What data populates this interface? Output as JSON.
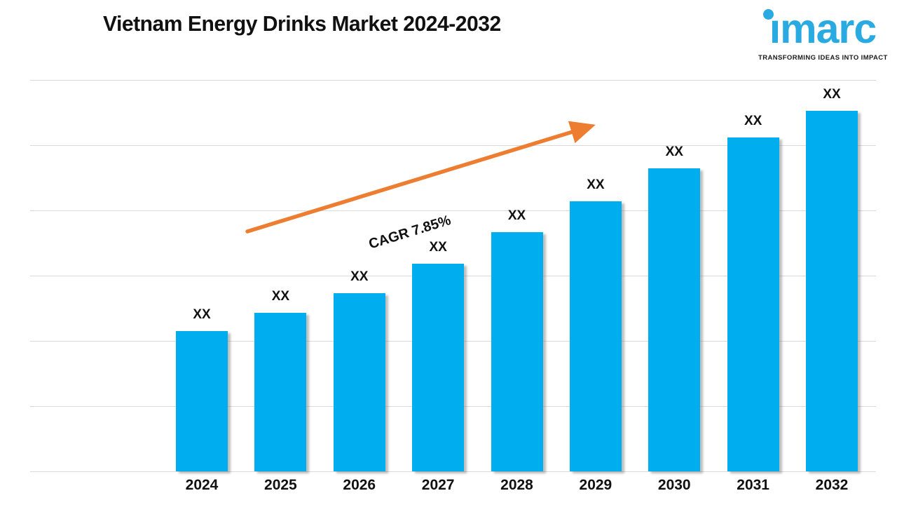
{
  "header": {
    "title": "Vietnam Energy Drinks Market 2024-2032",
    "logo": {
      "wordmark": "imarc",
      "wordmark_dotless": "ımarc",
      "tagline": "TRANSFORMING IDEAS INTO IMPACT",
      "brand_color": "#29ABE2"
    }
  },
  "chart_data": {
    "type": "bar",
    "title": "Vietnam Energy Drinks Market 2024-2032",
    "categories": [
      "2024",
      "2025",
      "2026",
      "2027",
      "2028",
      "2029",
      "2030",
      "2031",
      "2032"
    ],
    "values": [
      "XX",
      "XX",
      "XX",
      "XX",
      "XX",
      "XX",
      "XX",
      "XX",
      "XX"
    ],
    "relative_heights_pct": [
      35.8,
      40.5,
      45.5,
      53.0,
      61.1,
      69.0,
      77.4,
      85.3,
      92.1
    ],
    "xlabel": "",
    "ylabel": "",
    "y_tick_labels_visible": false,
    "gridlines": "horizontal",
    "gridline_count": 7,
    "legend_position": "none",
    "bar_color": "#00AEEF",
    "gridline_color": "#D9D9D9",
    "annotation": {
      "label": "CAGR 7.85%",
      "arrow_color": "#ED7D31"
    }
  }
}
